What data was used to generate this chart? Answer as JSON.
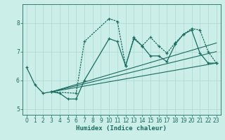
{
  "xlabel": "Humidex (Indice chaleur)",
  "bg_color": "#cceee9",
  "grid_color": "#aad8d2",
  "line_color": "#1a6b60",
  "xlim": [
    -0.5,
    23.5
  ],
  "ylim": [
    4.8,
    8.65
  ],
  "xticks": [
    0,
    1,
    2,
    3,
    4,
    5,
    6,
    7,
    8,
    9,
    10,
    11,
    12,
    13,
    14,
    15,
    16,
    17,
    18,
    19,
    20,
    21,
    22,
    23
  ],
  "yticks": [
    5,
    6,
    7,
    8
  ],
  "series1_x": [
    0,
    1,
    2,
    3,
    4,
    5,
    6,
    7,
    10,
    11,
    12,
    13,
    14,
    15,
    16,
    17,
    18,
    19,
    20,
    21,
    22,
    23
  ],
  "series1_y": [
    6.45,
    5.85,
    5.55,
    5.6,
    5.55,
    5.35,
    5.35,
    6.0,
    7.45,
    7.35,
    6.5,
    7.45,
    7.2,
    6.85,
    6.85,
    6.65,
    7.25,
    7.6,
    7.75,
    6.95,
    6.6,
    6.6
  ],
  "series2_x": [
    3,
    6,
    7,
    10,
    11,
    12,
    13,
    14,
    15,
    16,
    17,
    18,
    19,
    20,
    21,
    22,
    23
  ],
  "series2_y": [
    5.6,
    5.55,
    7.35,
    8.15,
    8.05,
    6.5,
    7.5,
    7.2,
    7.5,
    7.2,
    6.95,
    7.3,
    7.6,
    7.8,
    7.75,
    7.0,
    6.6
  ],
  "trend1_x": [
    3,
    23
  ],
  "trend1_y": [
    5.6,
    6.6
  ],
  "trend2_x": [
    3,
    23
  ],
  "trend2_y": [
    5.6,
    7.3
  ],
  "trend3_x": [
    3,
    23
  ],
  "trend3_y": [
    5.6,
    7.0
  ]
}
